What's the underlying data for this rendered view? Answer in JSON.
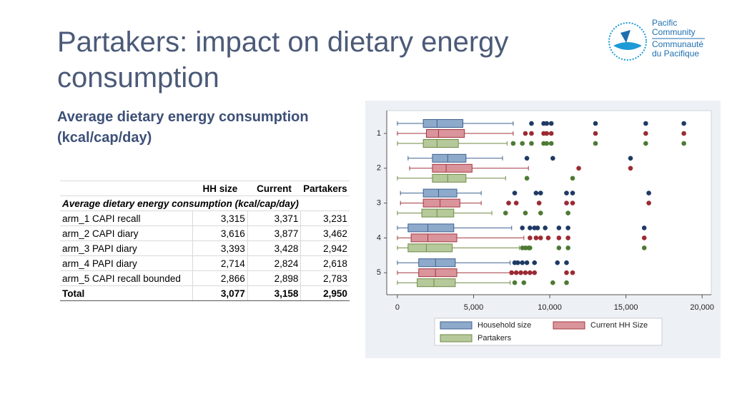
{
  "title": "Partakers: impact on dietary energy consumption",
  "subtitle": "Average dietary energy consumption (kcal/cap/day)",
  "logo": {
    "lines": [
      "Pacific",
      "Community",
      "Communauté",
      "du Pacifique"
    ]
  },
  "table": {
    "columns": [
      "HH size",
      "Current",
      "Partakers"
    ],
    "section_label": "Average dietary energy consumption (kcal/cap/day)",
    "rows": [
      [
        "arm_1 CAPI recall",
        "3,315",
        "3,371",
        "3,231"
      ],
      [
        "arm_2 CAPI diary",
        "3,616",
        "3,877",
        "3,462"
      ],
      [
        "arm_3 PAPI diary",
        "3,393",
        "3,428",
        "2,942"
      ],
      [
        "arm_4 PAPI diary",
        "2,714",
        "2,824",
        "2,618"
      ],
      [
        "arm_5 CAPI recall bounded",
        "2,866",
        "2,898",
        "2,783"
      ]
    ],
    "total": [
      "Total",
      "3,077",
      "3,158",
      "2,950"
    ]
  },
  "chart_data": {
    "type": "boxplot",
    "orientation": "horizontal",
    "categories": [
      "1",
      "2",
      "3",
      "4",
      "5"
    ],
    "xlim": [
      -700,
      20600
    ],
    "xticks": [
      0,
      {
        "value": 5000,
        "label": "5,000"
      },
      {
        "value": 10000,
        "label": "10,000"
      },
      {
        "value": 15000,
        "label": "15,000"
      },
      {
        "value": 20000,
        "label": "20,000"
      }
    ],
    "series": [
      {
        "name": "Household size",
        "color": "#8eaacb",
        "edgecolor": "#3e6190",
        "outlier_color": "#1f3a64",
        "boxes": [
          {
            "low": 0,
            "q1": 1700,
            "median": 2600,
            "q3": 4300,
            "high": 7600,
            "outliers": [
              8800,
              9600,
              9800,
              10100,
              13000,
              16300,
              18800
            ]
          },
          {
            "low": 700,
            "q1": 2300,
            "median": 3300,
            "q3": 4500,
            "high": 6900,
            "outliers": [
              8500,
              10200,
              15300
            ]
          },
          {
            "low": 200,
            "q1": 1700,
            "median": 2700,
            "q3": 3900,
            "high": 5500,
            "outliers": [
              7700,
              9100,
              9400,
              11100,
              11500,
              16500
            ]
          },
          {
            "low": 0,
            "q1": 700,
            "median": 2000,
            "q3": 3700,
            "high": 7500,
            "outliers": [
              8200,
              8700,
              9000,
              9200,
              9700,
              10600,
              11200,
              16200
            ]
          },
          {
            "low": 0,
            "q1": 1400,
            "median": 2500,
            "q3": 3800,
            "high": 7400,
            "outliers": [
              7700,
              7900,
              8200,
              8500,
              9000,
              10500,
              11100
            ]
          }
        ]
      },
      {
        "name": "Current HH Size",
        "color": "#d9959b",
        "edgecolor": "#a3373f",
        "outlier_color": "#9c2a33",
        "boxes": [
          {
            "low": 0,
            "q1": 1900,
            "median": 2700,
            "q3": 4400,
            "high": 7600,
            "outliers": [
              8400,
              8800,
              9600,
              9800,
              10100,
              13000,
              16300,
              18800
            ]
          },
          {
            "low": 800,
            "q1": 2300,
            "median": 3200,
            "q3": 4900,
            "high": 8600,
            "outliers": [
              11900,
              15300
            ]
          },
          {
            "low": 200,
            "q1": 1700,
            "median": 2800,
            "q3": 4100,
            "high": 5500,
            "outliers": [
              7300,
              7800,
              9300,
              11100,
              11500,
              16500
            ]
          },
          {
            "low": 0,
            "q1": 900,
            "median": 2000,
            "q3": 3900,
            "high": 8300,
            "outliers": [
              8700,
              9100,
              9400,
              9900,
              10600,
              11200,
              16200
            ]
          },
          {
            "low": 0,
            "q1": 1400,
            "median": 2500,
            "q3": 3900,
            "high": 7400,
            "outliers": [
              7500,
              7800,
              8100,
              8400,
              8700,
              9000,
              11100,
              11500
            ]
          }
        ]
      },
      {
        "name": "Partakers",
        "color": "#b6c99b",
        "edgecolor": "#6f8a45",
        "outlier_color": "#4d7a34",
        "boxes": [
          {
            "low": 0,
            "q1": 1700,
            "median": 2600,
            "q3": 4000,
            "high": 7200,
            "outliers": [
              7600,
              8200,
              8800,
              9600,
              9800,
              10100,
              13000,
              16300,
              18800
            ]
          },
          {
            "low": 0,
            "q1": 2300,
            "median": 3300,
            "q3": 4500,
            "high": 7100,
            "outliers": [
              8500,
              11500
            ]
          },
          {
            "low": 0,
            "q1": 1600,
            "median": 2600,
            "q3": 3700,
            "high": 6200,
            "outliers": [
              7100,
              8400,
              9400,
              11200
            ]
          },
          {
            "low": 0,
            "q1": 700,
            "median": 1900,
            "q3": 3600,
            "high": 8000,
            "outliers": [
              8200,
              8400,
              8600,
              8700,
              10600,
              11200,
              16200
            ]
          },
          {
            "low": 0,
            "q1": 1300,
            "median": 2400,
            "q3": 3800,
            "high": 7400,
            "outliers": [
              7700,
              8300,
              10200,
              11100
            ]
          }
        ]
      }
    ]
  }
}
